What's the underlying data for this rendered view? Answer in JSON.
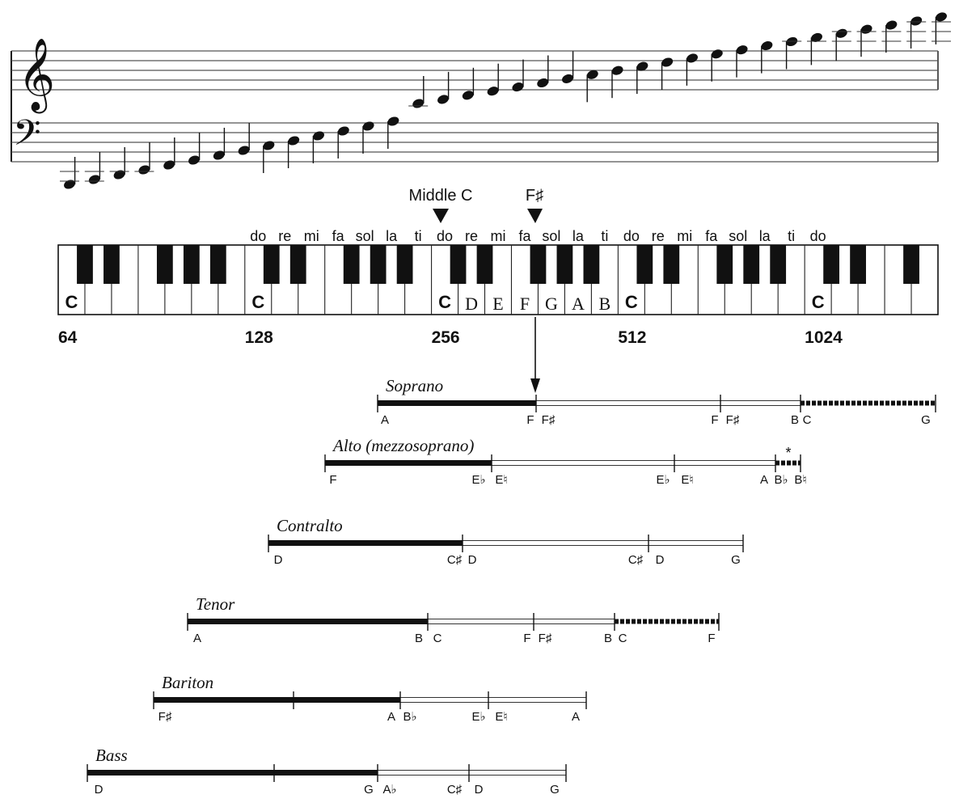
{
  "staff": {
    "treble_clef_icon": "treble-clef-icon",
    "bass_clef_icon": "bass-clef-icon"
  },
  "markers": {
    "middle_c": "Middle C",
    "f_sharp": "F♯"
  },
  "solfege": [
    "do",
    "re",
    "mi",
    "fa",
    "sol",
    "la",
    "ti",
    "do",
    "re",
    "mi",
    "fa",
    "sol",
    "la",
    "ti",
    "do",
    "re",
    "mi",
    "fa",
    "sol",
    "la",
    "ti",
    "do"
  ],
  "keyboard": {
    "c_labels": [
      "C",
      "C",
      "C",
      "C",
      "C"
    ],
    "note_names": [
      "D",
      "E",
      "F",
      "G",
      "A",
      "B"
    ],
    "frequencies": [
      "64",
      "128",
      "256",
      "512",
      "1024"
    ]
  },
  "voices": [
    {
      "name": "Soprano",
      "labels": [
        "A",
        "F",
        "F♯",
        "F",
        "F♯",
        "B",
        "C",
        "G"
      ]
    },
    {
      "name": "Alto (mezzosoprano)",
      "labels": [
        "F",
        "E♭",
        "E♮",
        "E♭",
        "E♮",
        "A",
        "B♭",
        "B♮"
      ],
      "asterisk": "*"
    },
    {
      "name": "Contralto",
      "labels": [
        "D",
        "C♯",
        "D",
        "C♯",
        "D",
        "G"
      ]
    },
    {
      "name": "Tenor",
      "labels": [
        "A",
        "B",
        "C",
        "F",
        "F♯",
        "B",
        "C",
        "F"
      ]
    },
    {
      "name": "Bariton",
      "labels": [
        "F♯",
        "A",
        "B♭",
        "E♭",
        "E♮",
        "A"
      ]
    },
    {
      "name": "Bass",
      "labels": [
        "D",
        "G",
        "A♭",
        "C♯",
        "D",
        "G"
      ]
    }
  ],
  "colors": {
    "ink": "#111111",
    "thin_line": "#333333",
    "background": "#ffffff"
  }
}
